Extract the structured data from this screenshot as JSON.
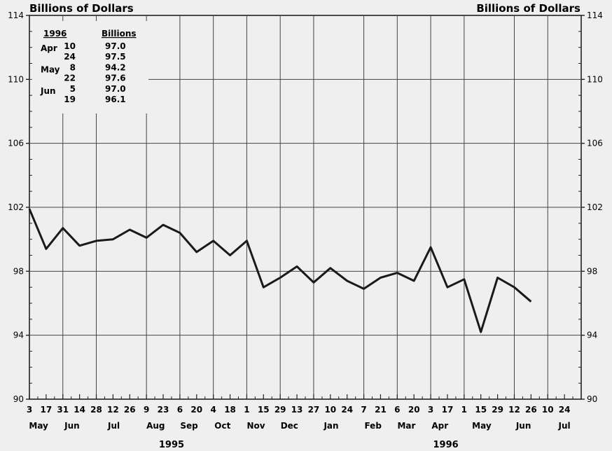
{
  "chart_data": {
    "type": "line",
    "y_axis_label_left": "Billions of Dollars",
    "y_axis_label_right": "Billions of Dollars",
    "ylim": [
      90,
      114
    ],
    "y_ticks": [
      90,
      94,
      98,
      102,
      106,
      110,
      114
    ],
    "x_tick_labels": [
      "3",
      "17",
      "31",
      "14",
      "28",
      "12",
      "26",
      "9",
      "23",
      "6",
      "20",
      "4",
      "18",
      "1",
      "15",
      "29",
      "13",
      "27",
      "10",
      "24",
      "7",
      "21",
      "6",
      "20",
      "3",
      "17",
      "1",
      "15",
      "29",
      "12",
      "26",
      "10",
      "24"
    ],
    "month_labels": [
      "May",
      "Jun",
      "Jul",
      "Aug",
      "Sep",
      "Oct",
      "Nov",
      "Dec",
      "Jan",
      "Feb",
      "Mar",
      "Apr",
      "May",
      "Jun",
      "Jul"
    ],
    "year_labels": [
      "1995",
      "1996"
    ],
    "grid": true,
    "series": [
      {
        "values": [
          101.9,
          99.4,
          100.7,
          99.6,
          99.9,
          100.0,
          100.6,
          100.1,
          100.9,
          100.4,
          99.2,
          99.9,
          99.0,
          99.9,
          97.0,
          97.6,
          98.3,
          97.3,
          98.2,
          97.4,
          96.9,
          97.6,
          97.9,
          97.4,
          99.5,
          97.0,
          97.5,
          94.2,
          97.6,
          97.0,
          96.1
        ]
      }
    ],
    "inset_table": {
      "header_year": "1996",
      "header_value": "Billions",
      "rows": [
        {
          "month": "Apr",
          "day": "10",
          "value": "97.0"
        },
        {
          "month": "",
          "day": "24",
          "value": "97.5"
        },
        {
          "month": "May",
          "day": "8",
          "value": "94.2"
        },
        {
          "month": "",
          "day": "22",
          "value": "97.6"
        },
        {
          "month": "Jun",
          "day": "5",
          "value": "97.0"
        },
        {
          "month": "",
          "day": "19",
          "value": "96.1"
        }
      ]
    }
  }
}
